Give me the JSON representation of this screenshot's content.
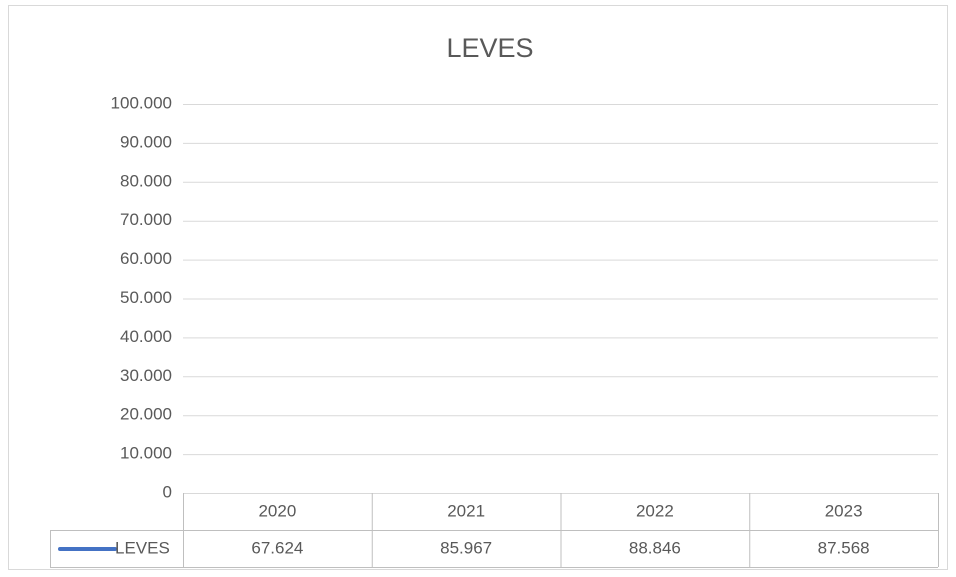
{
  "chart_data": {
    "type": "line",
    "title": "LEVES",
    "categories": [
      "2020",
      "2021",
      "2022",
      "2023"
    ],
    "series": [
      {
        "name": "LEVES",
        "color": "#4472c4",
        "values": [
          67624,
          85967,
          88846,
          87568
        ],
        "value_labels": [
          "67.624",
          "85.967",
          "88.846",
          "87.568"
        ]
      }
    ],
    "ylim": [
      0,
      100000
    ],
    "yticks": [
      0,
      {
        "value": 10000,
        "label": "10.000"
      },
      {
        "value": 20000,
        "label": "20.000"
      },
      {
        "value": 30000,
        "label": "30.000"
      },
      {
        "value": 40000,
        "label": "40.000"
      },
      {
        "value": 50000,
        "label": "50.000"
      },
      {
        "value": 60000,
        "label": "60.000"
      },
      {
        "value": 70000,
        "label": "70.000"
      },
      {
        "value": 80000,
        "label": "80.000"
      },
      {
        "value": 90000,
        "label": "90.000"
      },
      {
        "value": 100000,
        "label": "100.000"
      }
    ],
    "grid": true
  }
}
